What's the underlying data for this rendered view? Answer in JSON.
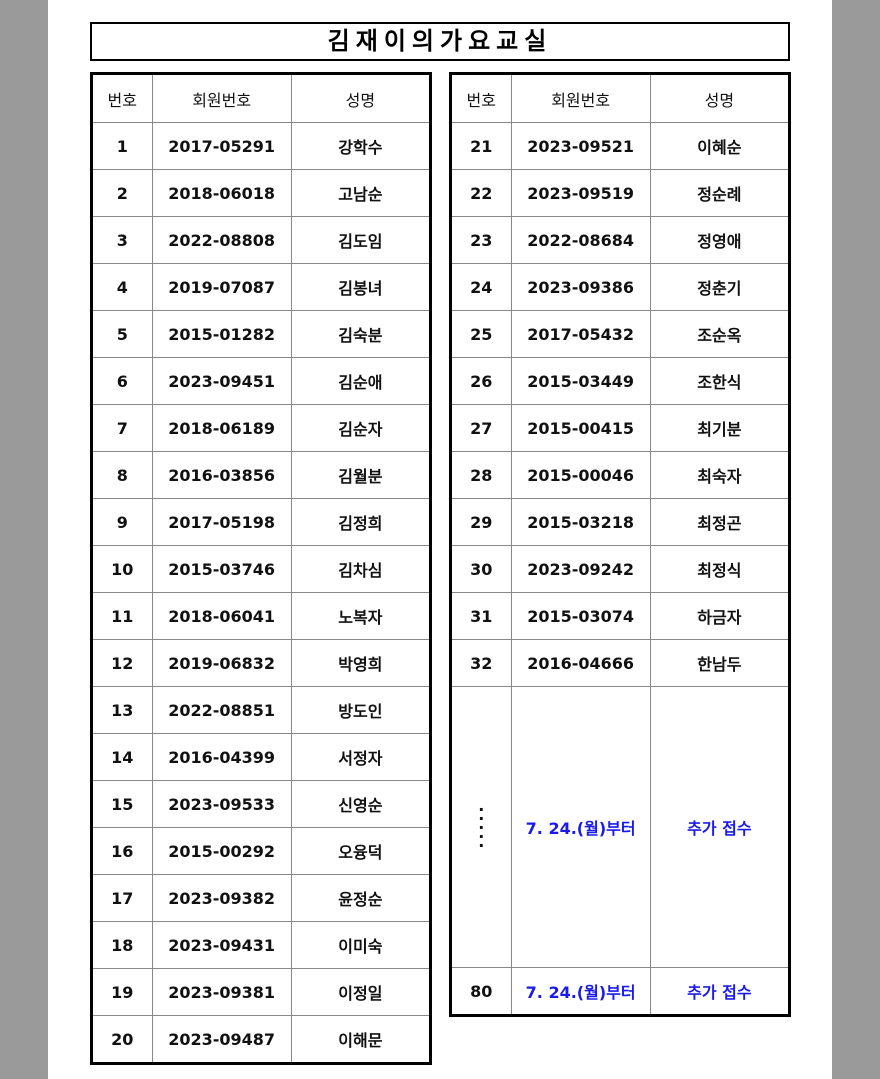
{
  "title": "김재이의가요교실",
  "headers": [
    "번호",
    "회원번호",
    "성명"
  ],
  "left_rows": [
    [
      "1",
      "2017-05291",
      "강학수"
    ],
    [
      "2",
      "2018-06018",
      "고남순"
    ],
    [
      "3",
      "2022-08808",
      "김도임"
    ],
    [
      "4",
      "2019-07087",
      "김봉녀"
    ],
    [
      "5",
      "2015-01282",
      "김숙분"
    ],
    [
      "6",
      "2023-09451",
      "김순애"
    ],
    [
      "7",
      "2018-06189",
      "김순자"
    ],
    [
      "8",
      "2016-03856",
      "김월분"
    ],
    [
      "9",
      "2017-05198",
      "김정희"
    ],
    [
      "10",
      "2015-03746",
      "김차심"
    ],
    [
      "11",
      "2018-06041",
      "노복자"
    ],
    [
      "12",
      "2019-06832",
      "박영희"
    ],
    [
      "13",
      "2022-08851",
      "방도인"
    ],
    [
      "14",
      "2016-04399",
      "서정자"
    ],
    [
      "15",
      "2023-09533",
      "신영순"
    ],
    [
      "16",
      "2015-00292",
      "오융덕"
    ],
    [
      "17",
      "2023-09382",
      "윤정순"
    ],
    [
      "18",
      "2023-09431",
      "이미숙"
    ],
    [
      "19",
      "2023-09381",
      "이정일"
    ],
    [
      "20",
      "2023-09487",
      "이해문"
    ]
  ],
  "right_rows": [
    [
      "21",
      "2023-09521",
      "이혜순"
    ],
    [
      "22",
      "2023-09519",
      "정순례"
    ],
    [
      "23",
      "2022-08684",
      "정영애"
    ],
    [
      "24",
      "2023-09386",
      "정춘기"
    ],
    [
      "25",
      "2017-05432",
      "조순옥"
    ],
    [
      "26",
      "2015-03449",
      "조한식"
    ],
    [
      "27",
      "2015-00415",
      "최기분"
    ],
    [
      "28",
      "2015-00046",
      "최숙자"
    ],
    [
      "29",
      "2015-03218",
      "최정곤"
    ],
    [
      "30",
      "2023-09242",
      "최정식"
    ],
    [
      "31",
      "2015-03074",
      "하금자"
    ],
    [
      "32",
      "2016-04666",
      "한남두"
    ]
  ],
  "merged": {
    "dots": "·\n·\n·\n·\n·",
    "date": "7. 24.(월)부터",
    "note": "추가 접수"
  },
  "last_row": [
    "80",
    "7. 24.(월)부터",
    "추가 접수"
  ],
  "colors": {
    "accent_text": "#1a1aee"
  }
}
